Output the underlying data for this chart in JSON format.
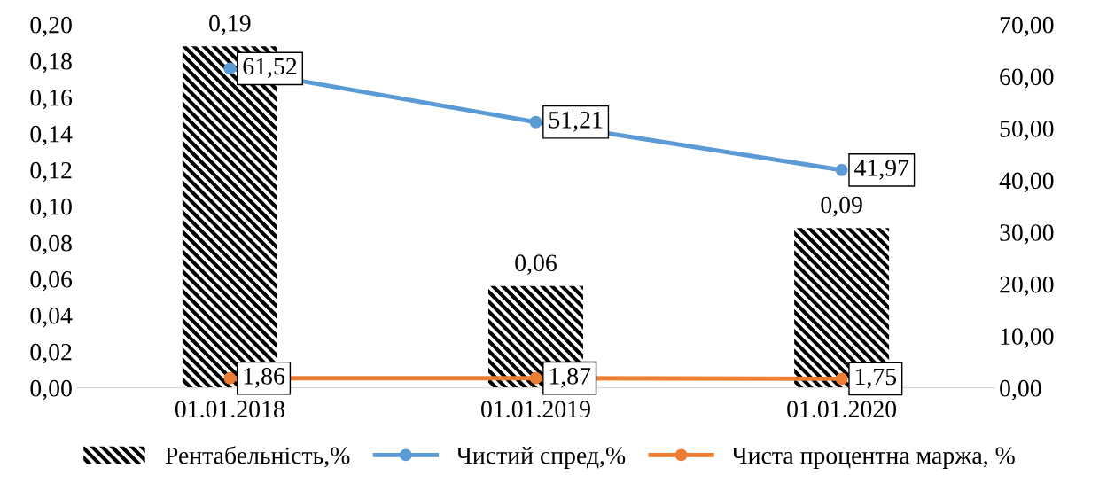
{
  "chart_data": {
    "type": "bar",
    "categories": [
      "01.01.2018",
      "01.01.2019",
      "01.01.2020"
    ],
    "series": [
      {
        "name": "Рентабельність,%",
        "color": "#000000",
        "values": [
          0.188,
          0.056,
          0.088
        ],
        "value_labels": [
          "0,19",
          "0,06",
          "0,09"
        ]
      },
      {
        "name": "Чистий спред,%",
        "type": "line",
        "axis": "y2",
        "color": "#5b9bd5",
        "values": [
          61.52,
          51.21,
          41.97
        ],
        "value_labels": [
          "61,52",
          "51,21",
          "41,97"
        ]
      },
      {
        "name": "Чиста процентна маржа, %",
        "type": "line",
        "axis": "y2",
        "color": "#ed7d31",
        "values": [
          1.86,
          1.87,
          1.75
        ],
        "value_labels": [
          "1,86",
          "1,87",
          "1,75"
        ]
      }
    ],
    "ylim": [
      0,
      0.2
    ],
    "yticks": [
      {
        "value": 0,
        "label": "0,00"
      },
      {
        "value": 0.02,
        "label": "0,02"
      },
      {
        "value": 0.04,
        "label": "0,04"
      },
      {
        "value": 0.06,
        "label": "0,06"
      },
      {
        "value": 0.08,
        "label": "0,08"
      },
      {
        "value": 0.1,
        "label": "0,10"
      },
      {
        "value": 0.12,
        "label": "0,12"
      },
      {
        "value": 0.14,
        "label": "0,14"
      },
      {
        "value": 0.16,
        "label": "0,16"
      },
      {
        "value": 0.18,
        "label": "0,18"
      },
      {
        "value": 0.2,
        "label": "0,20"
      }
    ],
    "y2lim": [
      0,
      70
    ],
    "y2ticks": [
      {
        "value": 0,
        "label": "0,00"
      },
      {
        "value": 10,
        "label": "10,00"
      },
      {
        "value": 20,
        "label": "20,00"
      },
      {
        "value": 30,
        "label": "30,00"
      },
      {
        "value": 40,
        "label": "40,00"
      },
      {
        "value": 50,
        "label": "50,00"
      },
      {
        "value": 60,
        "label": "60,00"
      },
      {
        "value": 70,
        "label": "70,00"
      }
    ],
    "marker": "circle",
    "grid": false,
    "legend": "bottom"
  }
}
